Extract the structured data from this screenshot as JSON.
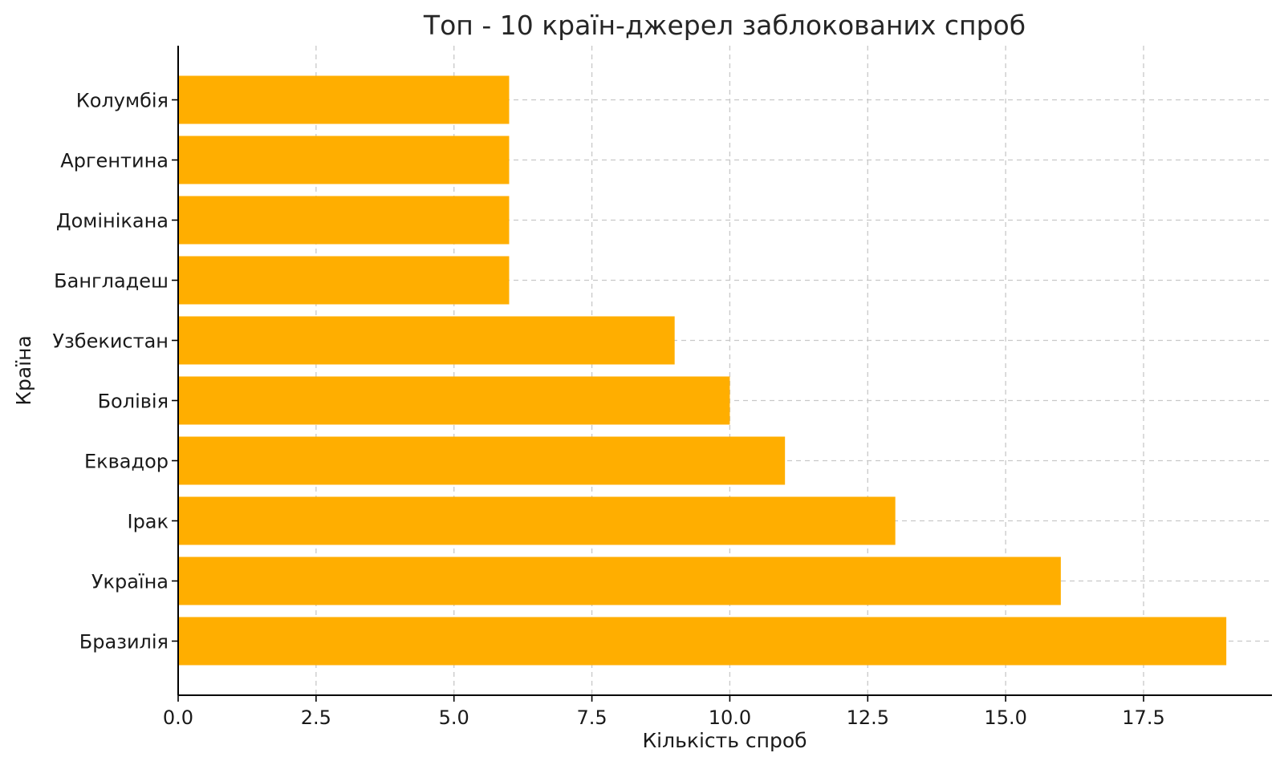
{
  "chart_data": {
    "type": "bar",
    "orientation": "horizontal",
    "title": "Топ - 10 країн-джерел заблокованих спроб",
    "xlabel": "Кількість спроб",
    "ylabel": "Країна",
    "categories": [
      "Бразилія",
      "Україна",
      "Ірак",
      "Еквадор",
      "Болівія",
      "Узбекистан",
      "Бангладеш",
      "Домінікана",
      "Аргентина",
      "Колумбія"
    ],
    "values": [
      19,
      16,
      13,
      11,
      10,
      9,
      6,
      6,
      6,
      6
    ],
    "xlim": [
      0,
      20
    ],
    "x_ticks": [
      "0.0",
      "2.5",
      "5.0",
      "7.5",
      "10.0",
      "12.5",
      "15.0",
      "17.5"
    ],
    "grid": true,
    "bar_color": "#FFAE00"
  }
}
